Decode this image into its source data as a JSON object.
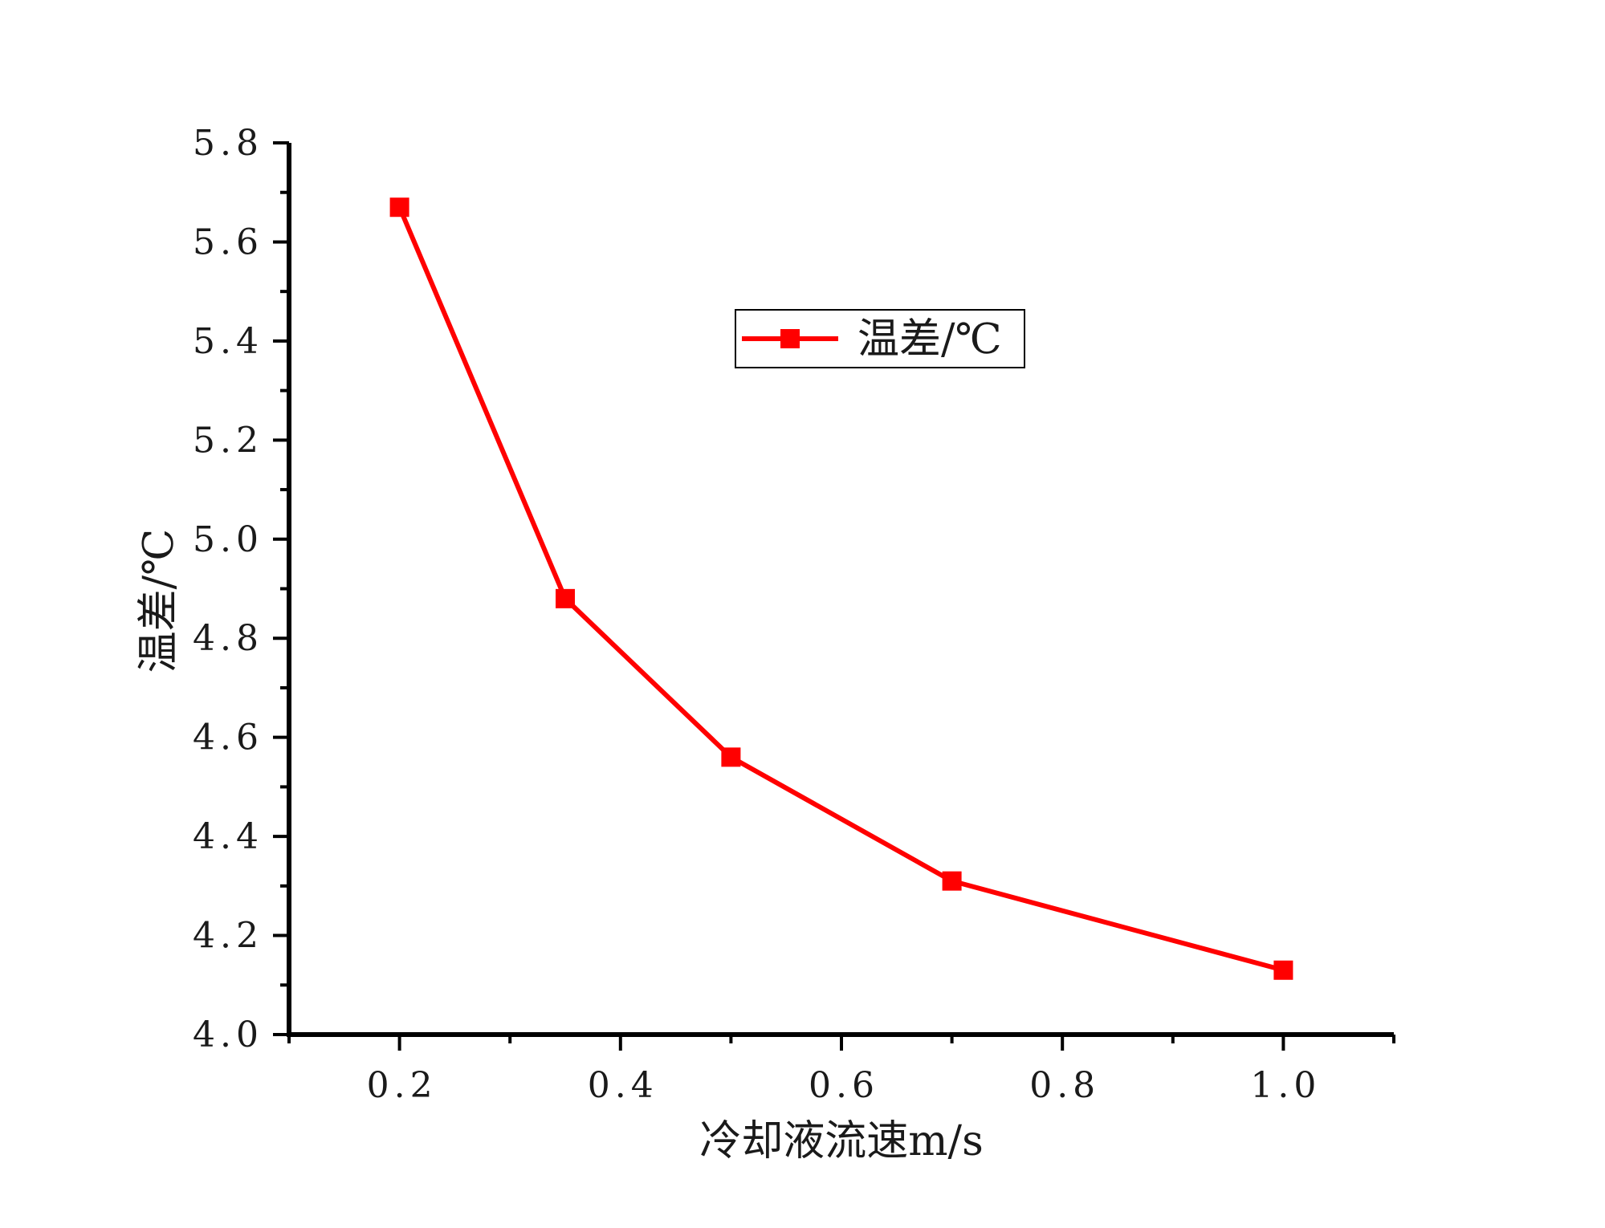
{
  "chart_data": {
    "type": "line",
    "x": [
      0.2,
      0.35,
      0.5,
      0.7,
      1.0
    ],
    "series": [
      {
        "name": "温差/℃",
        "values": [
          5.67,
          4.88,
          4.56,
          4.31,
          4.13
        ],
        "color": "#ff0000",
        "marker": "square"
      }
    ],
    "xlabel": "冷却液流速m/s",
    "ylabel": "温差/℃",
    "xlim": [
      0.1,
      1.1
    ],
    "ylim": [
      4.0,
      5.8
    ],
    "xticks": [
      "0.2",
      "0.4",
      "0.6",
      "0.8",
      "1.0"
    ],
    "yticks": [
      "4.0",
      "4.2",
      "4.4",
      "4.6",
      "4.8",
      "5.0",
      "5.2",
      "5.4",
      "5.6",
      "5.8"
    ],
    "grid": false,
    "legend_position": "upper-center"
  }
}
